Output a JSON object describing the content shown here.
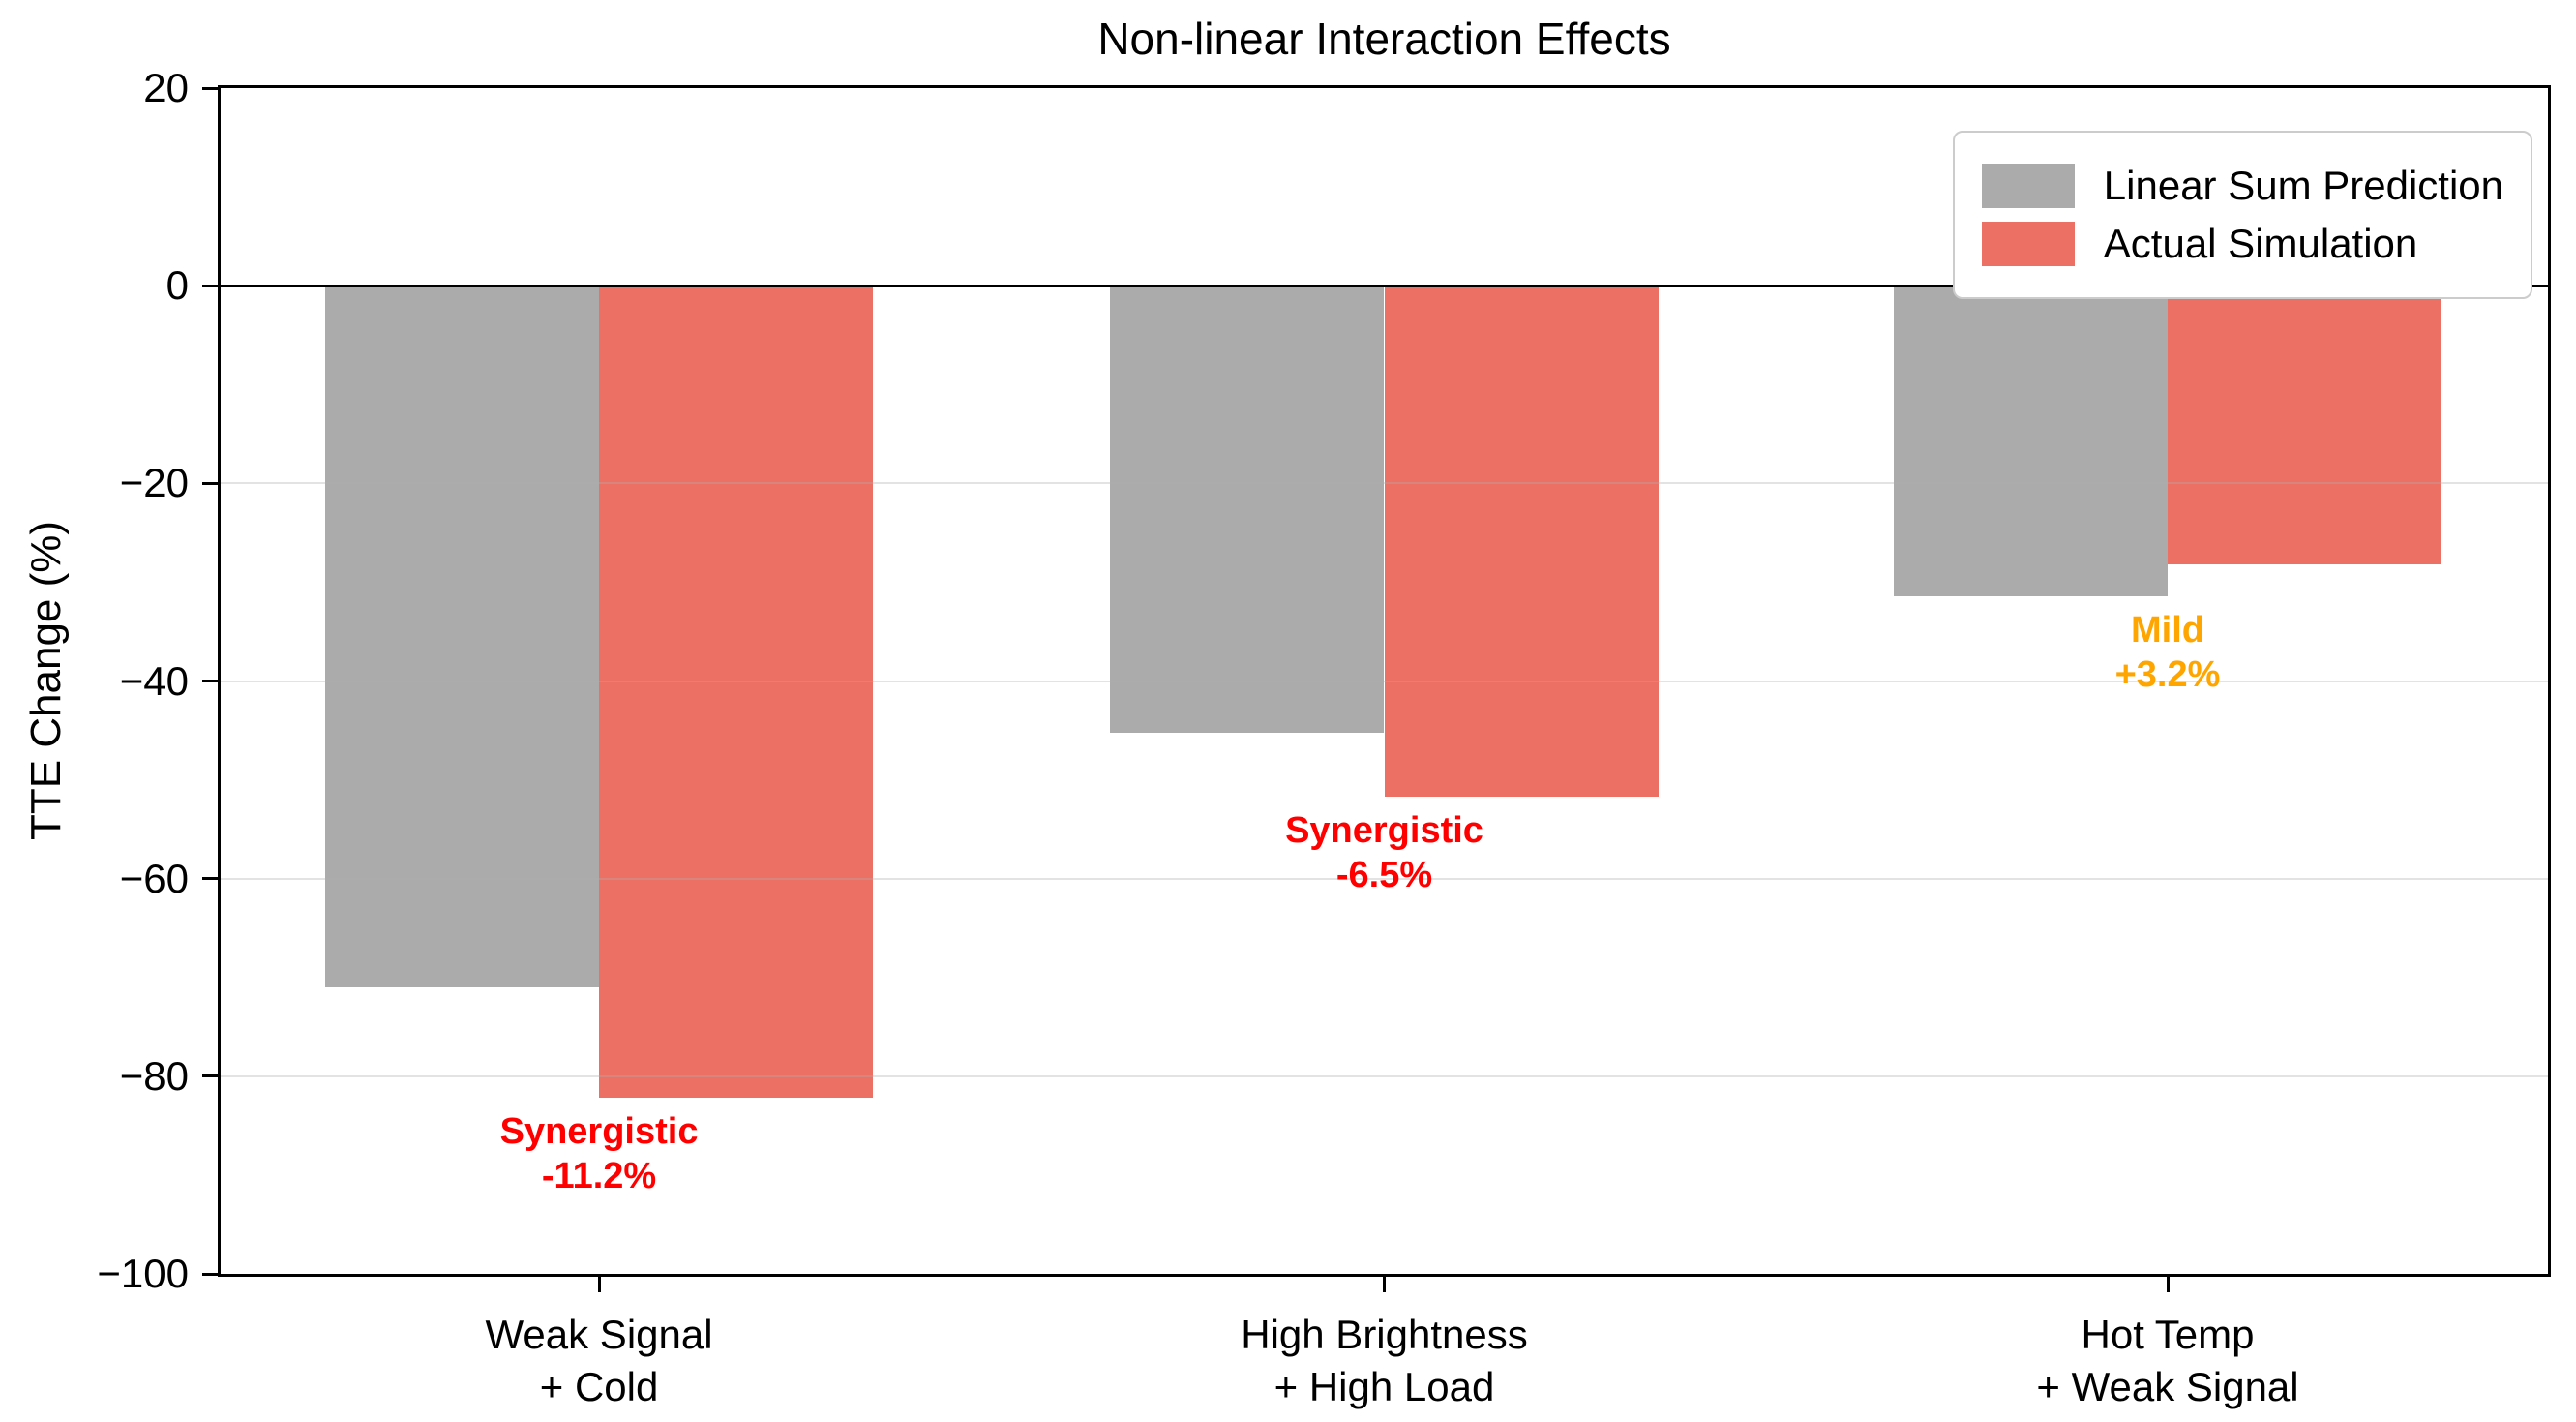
{
  "chart_data": {
    "type": "bar",
    "title": "Non-linear Interaction Effects",
    "ylabel": "TTE Change (%)",
    "ylim": [
      -100,
      20
    ],
    "grid": "horizontal, light gray, drawn over bars",
    "legend_position": "upper right",
    "yticks": [
      {
        "label": "20",
        "value": 20
      },
      {
        "label": "0",
        "value": 0
      },
      {
        "label": "−20",
        "value": -20
      },
      {
        "label": "−40",
        "value": -40
      },
      {
        "label": "−60",
        "value": -60
      },
      {
        "label": "−80",
        "value": -80
      },
      {
        "label": "−100",
        "value": -100
      }
    ],
    "categories": [
      {
        "lines": [
          "Weak Signal",
          "+ Cold"
        ]
      },
      {
        "lines": [
          "High Brightness",
          "+ High Load"
        ]
      },
      {
        "lines": [
          "Hot Temp",
          "+ Weak Signal"
        ]
      }
    ],
    "series": [
      {
        "name": "Linear Sum Prediction",
        "color": "#ababab",
        "values": [
          -71.0,
          -45.2,
          -31.4
        ]
      },
      {
        "name": "Actual Simulation",
        "color": "#ec7063",
        "values": [
          -82.2,
          -51.7,
          -28.2
        ]
      }
    ],
    "annotations": [
      {
        "lines": [
          "Synergistic",
          "-11.2%"
        ],
        "color": "#ff0000"
      },
      {
        "lines": [
          "Synergistic",
          "-6.5%"
        ],
        "color": "#ff0000"
      },
      {
        "lines": [
          "Mild",
          "+3.2%"
        ],
        "color": "#ffa500"
      }
    ]
  }
}
